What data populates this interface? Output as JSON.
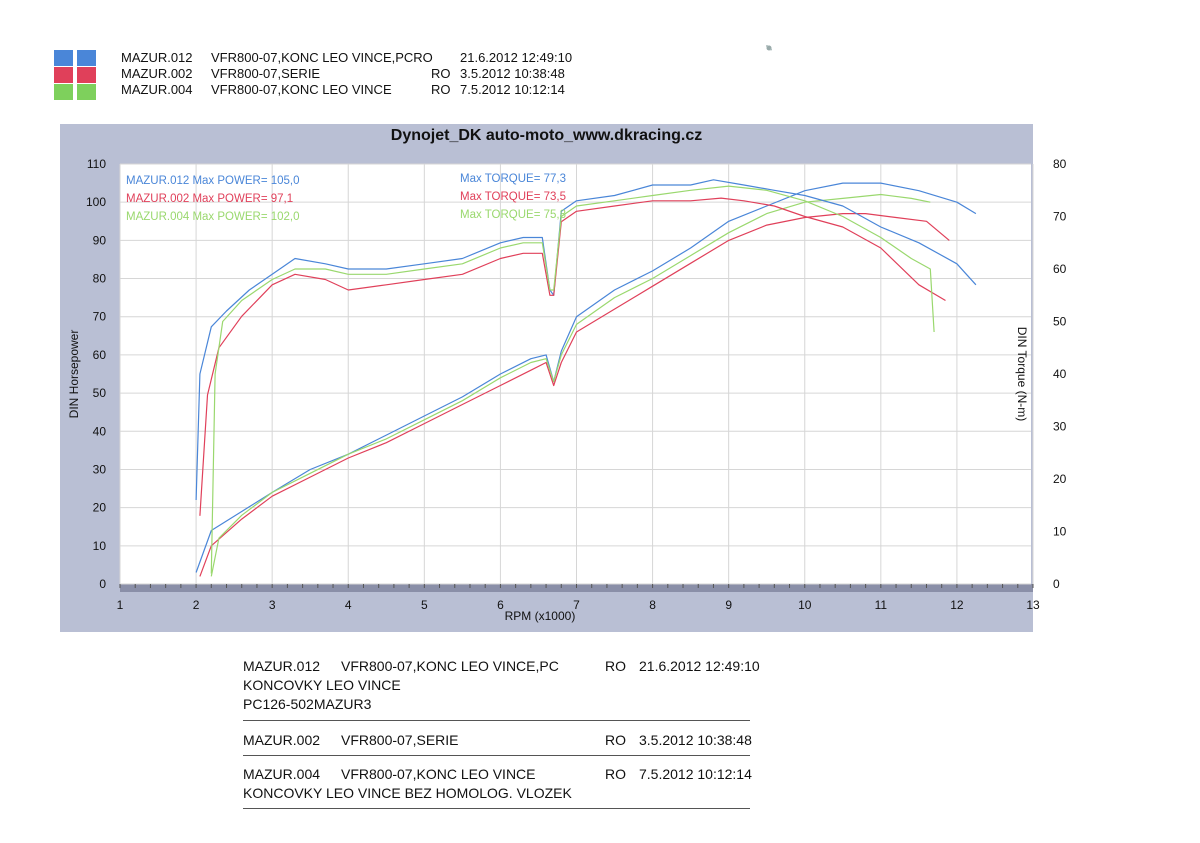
{
  "header_legend": [
    {
      "id": "MAZUR.012",
      "desc": "VFR800-07,KONC LEO VINCE,PCRO",
      "code": "",
      "date": "21.6.2012 12:49:10",
      "color": "#4a86d8"
    },
    {
      "id": "MAZUR.002",
      "desc": "VFR800-07,SERIE",
      "code": "RO",
      "date": "3.5.2012 10:38:48",
      "color": "#e0405a"
    },
    {
      "id": "MAZUR.004",
      "desc": "VFR800-07,KONC LEO VINCE",
      "code": "RO",
      "date": "7.5.2012 10:12:14",
      "color": "#7ed05c"
    }
  ],
  "footer_info": [
    {
      "id": "MAZUR.012",
      "desc": "VFR800-07,KONC LEO VINCE,PC",
      "code": "RO",
      "date": "21.6.2012 12:49:10",
      "notes": [
        "KONCOVKY LEO VINCE",
        "PC126-502MAZUR3"
      ]
    },
    {
      "id": "MAZUR.002",
      "desc": "VFR800-07,SERIE",
      "code": "RO",
      "date": "3.5.2012 10:38:48",
      "notes": []
    },
    {
      "id": "MAZUR.004",
      "desc": "VFR800-07,KONC LEO VINCE",
      "code": "RO",
      "date": "7.5.2012 10:12:14",
      "notes": [
        "KONCOVKY LEO VINCE BEZ HOMOLOG. VLOZEK"
      ]
    }
  ],
  "chart_data": {
    "type": "line",
    "title": "Dynojet_DK auto-moto_www.dkracing.cz",
    "xlabel": "RPM (x1000)",
    "ylabel": "DIN Horsepower",
    "y2label": "DIN Torque (N-m)",
    "xlim": [
      1,
      13
    ],
    "ylim": [
      0,
      110
    ],
    "y2lim": [
      0,
      80
    ],
    "xticks": [
      1,
      2,
      3,
      4,
      5,
      6,
      7,
      8,
      9,
      10,
      11,
      12,
      13
    ],
    "yticks": [
      0,
      10,
      20,
      30,
      40,
      50,
      60,
      70,
      80,
      90,
      100,
      110
    ],
    "y2ticks": [
      0,
      10,
      20,
      30,
      40,
      50,
      60,
      70,
      80
    ],
    "grid": true,
    "annotations": [
      {
        "run": "MAZUR.012",
        "power_label": "Max POWER=",
        "power_value": "105,0",
        "torque_label": "Max TORQUE=",
        "torque_value": "77,3",
        "color": "#4a86d8"
      },
      {
        "run": "MAZUR.002",
        "power_label": "Max POWER=",
        "power_value": "97,1",
        "torque_label": "Max TORQUE=",
        "torque_value": "73,5",
        "color": "#e0405a"
      },
      {
        "run": "MAZUR.004",
        "power_label": "Max POWER=",
        "power_value": "102,0",
        "torque_label": "Max TORQUE=",
        "torque_value": "75,8",
        "color": "#9ad86e"
      }
    ],
    "series": [
      {
        "name": "MAZUR.012",
        "kind": "power",
        "axis": "y",
        "color": "#4a86d8",
        "x": [
          2.0,
          2.2,
          2.6,
          3.0,
          3.5,
          4.0,
          4.5,
          5.0,
          5.5,
          6.0,
          6.4,
          6.6,
          6.7,
          6.8,
          7.0,
          7.5,
          8.0,
          8.5,
          9.0,
          9.5,
          10.0,
          10.5,
          11.0,
          11.5,
          12.0,
          12.25
        ],
        "y": [
          3,
          14,
          19,
          24,
          30,
          34,
          39,
          44,
          49,
          55,
          59,
          60,
          53,
          61,
          70,
          77,
          82,
          88,
          95,
          99,
          103,
          105,
          105,
          103,
          100,
          97
        ]
      },
      {
        "name": "MAZUR.002",
        "kind": "power",
        "axis": "y",
        "color": "#e0405a",
        "x": [
          2.05,
          2.2,
          2.6,
          3.0,
          3.5,
          4.0,
          4.5,
          5.0,
          5.5,
          6.0,
          6.4,
          6.6,
          6.7,
          6.8,
          7.0,
          7.5,
          8.0,
          8.5,
          9.0,
          9.5,
          10.0,
          10.5,
          10.8,
          11.2,
          11.6,
          11.9
        ],
        "y": [
          2,
          10,
          17,
          23,
          28,
          33,
          37,
          42,
          47,
          52,
          56,
          58,
          52,
          58,
          66,
          72,
          78,
          84,
          90,
          94,
          96,
          97,
          97,
          96,
          95,
          90
        ]
      },
      {
        "name": "MAZUR.004",
        "kind": "power",
        "axis": "y",
        "color": "#9ad86e",
        "x": [
          2.2,
          2.3,
          2.6,
          3.0,
          3.5,
          4.0,
          4.5,
          5.0,
          5.5,
          6.0,
          6.4,
          6.6,
          6.7,
          6.8,
          7.0,
          7.5,
          8.0,
          8.5,
          9.0,
          9.5,
          10.0,
          10.5,
          11.0,
          11.4,
          11.65
        ],
        "y": [
          2,
          12,
          18,
          24,
          29,
          34,
          38,
          43,
          48,
          54,
          58,
          59,
          53,
          60,
          68,
          75,
          80,
          86,
          92,
          97,
          100,
          101,
          102,
          101,
          100
        ]
      },
      {
        "name": "MAZUR.012",
        "kind": "torque",
        "axis": "y2",
        "color": "#4a86d8",
        "x": [
          2.0,
          2.05,
          2.2,
          2.4,
          2.7,
          3.0,
          3.3,
          3.7,
          4.0,
          4.5,
          5.0,
          5.5,
          6.0,
          6.3,
          6.55,
          6.65,
          6.7,
          6.8,
          7.0,
          7.5,
          8.0,
          8.5,
          8.8,
          9.2,
          9.6,
          10.0,
          10.5,
          11.0,
          11.5,
          12.0,
          12.25
        ],
        "y": [
          16,
          40,
          49,
          52,
          56,
          59,
          62,
          61,
          60,
          60,
          61,
          62,
          65,
          66,
          66,
          56,
          55,
          71,
          73,
          74,
          76,
          76,
          77,
          76,
          75,
          74,
          72,
          68,
          65,
          61,
          57
        ]
      },
      {
        "name": "MAZUR.002",
        "kind": "torque",
        "axis": "y2",
        "color": "#e0405a",
        "x": [
          2.05,
          2.15,
          2.3,
          2.6,
          3.0,
          3.3,
          3.7,
          4.0,
          4.5,
          5.0,
          5.5,
          6.0,
          6.3,
          6.55,
          6.65,
          6.7,
          6.8,
          7.0,
          7.5,
          8.0,
          8.5,
          8.9,
          9.2,
          9.6,
          10.0,
          10.5,
          11.0,
          11.5,
          11.85
        ],
        "y": [
          13,
          36,
          45,
          51,
          57,
          59,
          58,
          56,
          57,
          58,
          59,
          62,
          63,
          63,
          55,
          55,
          69,
          71,
          72,
          73,
          73,
          73.5,
          73,
          72,
          70,
          68,
          64,
          57,
          54
        ]
      },
      {
        "name": "MAZUR.004",
        "kind": "torque",
        "axis": "y2",
        "color": "#9ad86e",
        "x": [
          2.2,
          2.25,
          2.35,
          2.6,
          3.0,
          3.3,
          3.7,
          4.0,
          4.5,
          5.0,
          5.5,
          6.0,
          6.3,
          6.55,
          6.65,
          6.7,
          6.8,
          7.0,
          7.5,
          8.0,
          8.5,
          9.0,
          9.5,
          10.0,
          10.5,
          11.0,
          11.4,
          11.65,
          11.7
        ],
        "y": [
          2,
          40,
          50,
          54,
          58,
          60,
          60,
          59,
          59,
          60,
          61,
          64,
          65,
          65,
          56,
          56,
          70,
          72,
          73,
          74,
          75,
          75.8,
          75,
          73,
          70,
          66,
          62,
          60,
          48
        ]
      }
    ]
  }
}
